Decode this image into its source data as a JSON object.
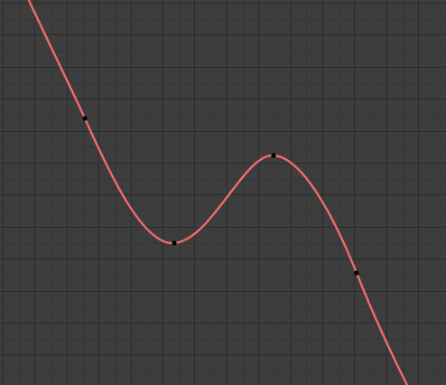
{
  "editor": {
    "name": "graph-editor",
    "colors": {
      "background": "#3d3d3d",
      "grid_minor": "#353535",
      "grid_major": "#2b2b2b",
      "curve": "#f06b6b",
      "keyframe": "#000000"
    }
  }
}
